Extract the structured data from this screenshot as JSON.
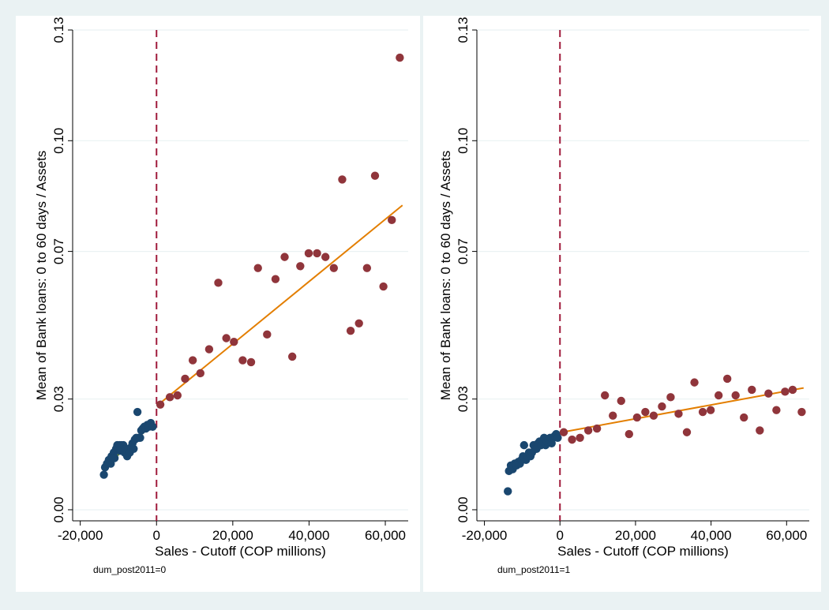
{
  "colors": {
    "outer_bg": "#eaf2f3",
    "panel_bg": "#ffffff",
    "grid": "#eaf2f3",
    "cutoff_line": "#a01b3c",
    "left_points": "#1a476f",
    "right_points": "#90353b",
    "left_fit": "#55752f",
    "right_fit": "#e37e00"
  },
  "chart_data": [
    {
      "type": "scatter",
      "subtitle": "dum_post2011=0",
      "xlabel": "Sales - Cutoff (COP millions)",
      "ylabel": "Mean of Bank loans: 0 to 60 days / Assets",
      "xlim": [
        -22000,
        66000
      ],
      "ylim": [
        -0.003,
        0.13
      ],
      "xticks": [
        -20000,
        0,
        20000,
        40000,
        60000
      ],
      "xtick_labels": [
        "-20,000",
        "0",
        "20,000",
        "40,000",
        "60,000"
      ],
      "yticks": [
        0.0,
        0.03,
        0.07,
        0.1,
        0.13
      ],
      "ytick_labels": [
        "0.00",
        "0.03",
        "0.07",
        "0.10",
        "0.13"
      ],
      "grid": true,
      "cutoff_x": 0,
      "series": [
        {
          "side": "left",
          "points": [
            [
              -13800,
              0.0095
            ],
            [
              -13500,
              0.0115
            ],
            [
              -13000,
              0.0125
            ],
            [
              -12500,
              0.0135
            ],
            [
              -12000,
              0.0125
            ],
            [
              -11800,
              0.0145
            ],
            [
              -11200,
              0.0155
            ],
            [
              -11000,
              0.014
            ],
            [
              -10600,
              0.0165
            ],
            [
              -10300,
              0.0175
            ],
            [
              -10000,
              0.0165
            ],
            [
              -9700,
              0.0175
            ],
            [
              -9500,
              0.016
            ],
            [
              -9200,
              0.0175
            ],
            [
              -9000,
              0.0165
            ],
            [
              -8700,
              0.0175
            ],
            [
              -8400,
              0.0155
            ],
            [
              -8000,
              0.0165
            ],
            [
              -7700,
              0.0145
            ],
            [
              -7300,
              0.0165
            ],
            [
              -7000,
              0.0155
            ],
            [
              -6600,
              0.017
            ],
            [
              -6300,
              0.018
            ],
            [
              -6000,
              0.0165
            ],
            [
              -5700,
              0.019
            ],
            [
              -5300,
              0.0195
            ],
            [
              -5000,
              0.0265
            ],
            [
              -4700,
              0.0195
            ],
            [
              -4300,
              0.0195
            ],
            [
              -4000,
              0.0215
            ],
            [
              -3600,
              0.022
            ],
            [
              -3200,
              0.0225
            ],
            [
              -2800,
              0.022
            ],
            [
              -2400,
              0.023
            ],
            [
              -2000,
              0.0225
            ],
            [
              -1500,
              0.0235
            ],
            [
              -1000,
              0.0225
            ]
          ],
          "fit": [
            [
              -13800,
              0.0115
            ],
            [
              -500,
              0.0235
            ]
          ]
        },
        {
          "side": "right",
          "points": [
            [
              1000,
              0.0285
            ],
            [
              3500,
              0.0305
            ],
            [
              5500,
              0.031
            ],
            [
              7500,
              0.0355
            ],
            [
              9500,
              0.0405
            ],
            [
              11500,
              0.037
            ],
            [
              13800,
              0.0435
            ],
            [
              16200,
              0.0615
            ],
            [
              18300,
              0.0465
            ],
            [
              20300,
              0.0455
            ],
            [
              22600,
              0.0405
            ],
            [
              24800,
              0.04
            ],
            [
              26600,
              0.0655
            ],
            [
              29000,
              0.0475
            ],
            [
              31200,
              0.0625
            ],
            [
              33600,
              0.0685
            ],
            [
              35600,
              0.0415
            ],
            [
              37700,
              0.066
            ],
            [
              39900,
              0.0695
            ],
            [
              42100,
              0.0695
            ],
            [
              44300,
              0.0685
            ],
            [
              46500,
              0.0655
            ],
            [
              48700,
              0.0895
            ],
            [
              50900,
              0.0485
            ],
            [
              53100,
              0.0505
            ],
            [
              55200,
              0.0655
            ],
            [
              57300,
              0.0905
            ],
            [
              59500,
              0.0605
            ],
            [
              61700,
              0.0785
            ],
            [
              63800,
              0.1225
            ]
          ],
          "fit": [
            [
              500,
              0.0285
            ],
            [
              64500,
              0.0825
            ]
          ]
        }
      ]
    },
    {
      "type": "scatter",
      "subtitle": "dum_post2011=1",
      "xlabel": "Sales - Cutoff (COP millions)",
      "ylabel": "Mean of Bank loans: 0 to 60 days / Assets",
      "xlim": [
        -22000,
        66000
      ],
      "ylim": [
        -0.003,
        0.13
      ],
      "xticks": [
        -20000,
        0,
        20000,
        40000,
        60000
      ],
      "xtick_labels": [
        "-20,000",
        "0",
        "20,000",
        "40,000",
        "60,000"
      ],
      "yticks": [
        0.0,
        0.03,
        0.07,
        0.1,
        0.13
      ],
      "ytick_labels": [
        "0.00",
        "0.03",
        "0.07",
        "0.10",
        "0.13"
      ],
      "grid": true,
      "cutoff_x": 0,
      "series": [
        {
          "side": "left",
          "points": [
            [
              -13800,
              0.005
            ],
            [
              -13500,
              0.0105
            ],
            [
              -13000,
              0.012
            ],
            [
              -12500,
              0.011
            ],
            [
              -12000,
              0.0125
            ],
            [
              -11500,
              0.012
            ],
            [
              -11000,
              0.013
            ],
            [
              -10600,
              0.0125
            ],
            [
              -10200,
              0.0135
            ],
            [
              -9800,
              0.0145
            ],
            [
              -9500,
              0.0175
            ],
            [
              -9000,
              0.0135
            ],
            [
              -8600,
              0.0145
            ],
            [
              -8200,
              0.0155
            ],
            [
              -7800,
              0.0145
            ],
            [
              -7400,
              0.0155
            ],
            [
              -7000,
              0.0175
            ],
            [
              -6600,
              0.0165
            ],
            [
              -6200,
              0.0165
            ],
            [
              -5800,
              0.018
            ],
            [
              -5400,
              0.0185
            ],
            [
              -5000,
              0.0175
            ],
            [
              -4600,
              0.0185
            ],
            [
              -4200,
              0.0195
            ],
            [
              -3800,
              0.0175
            ],
            [
              -3400,
              0.0185
            ],
            [
              -3000,
              0.019
            ],
            [
              -2600,
              0.0195
            ],
            [
              -2200,
              0.018
            ],
            [
              -1800,
              0.0195
            ],
            [
              -1400,
              0.02
            ],
            [
              -1000,
              0.0205
            ],
            [
              -600,
              0.0195
            ]
          ],
          "fit": [
            [
              -13800,
              0.0115
            ],
            [
              -500,
              0.0205
            ]
          ]
        },
        {
          "side": "right",
          "points": [
            [
              1000,
              0.021
            ],
            [
              3200,
              0.019
            ],
            [
              5300,
              0.0195
            ],
            [
              7500,
              0.0215
            ],
            [
              9800,
              0.022
            ],
            [
              11900,
              0.031
            ],
            [
              14000,
              0.0255
            ],
            [
              16200,
              0.0295
            ],
            [
              18300,
              0.0205
            ],
            [
              20400,
              0.025
            ],
            [
              22600,
              0.0265
            ],
            [
              24800,
              0.0255
            ],
            [
              27000,
              0.028
            ],
            [
              29300,
              0.0305
            ],
            [
              31400,
              0.026
            ],
            [
              33600,
              0.021
            ],
            [
              35600,
              0.0345
            ],
            [
              37800,
              0.0265
            ],
            [
              39900,
              0.027
            ],
            [
              42000,
              0.031
            ],
            [
              44300,
              0.0355
            ],
            [
              46500,
              0.031
            ],
            [
              48700,
              0.025
            ],
            [
              50800,
              0.0325
            ],
            [
              52900,
              0.0215
            ],
            [
              55200,
              0.0315
            ],
            [
              57300,
              0.027
            ],
            [
              59600,
              0.032
            ],
            [
              61600,
              0.0325
            ],
            [
              64000,
              0.0265
            ]
          ],
          "fit": [
            [
              500,
              0.021
            ],
            [
              64500,
              0.033
            ]
          ]
        }
      ]
    }
  ]
}
